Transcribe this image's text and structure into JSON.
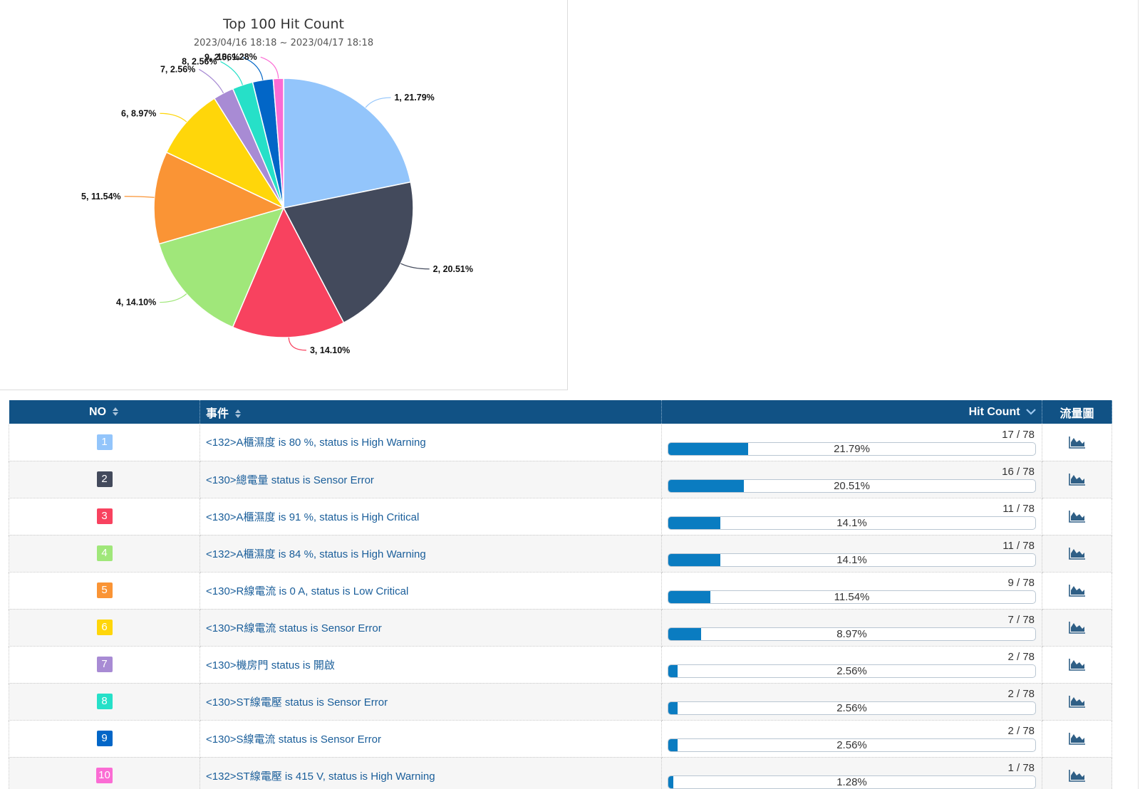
{
  "chart_data": {
    "type": "pie",
    "title": "Top 100 Hit Count",
    "subtitle": "2023/04/16 18:18 ~ 2023/04/17 18:18",
    "slices": [
      {
        "label": "1, 21.79%",
        "value": 21.79,
        "color": "#93c5fb"
      },
      {
        "label": "2, 20.51%",
        "value": 20.51,
        "color": "#434a5c"
      },
      {
        "label": "3, 14.10%",
        "value": 14.1,
        "color": "#f8425f"
      },
      {
        "label": "4, 14.10%",
        "value": 14.1,
        "color": "#a0e77a"
      },
      {
        "label": "5, 11.54%",
        "value": 11.54,
        "color": "#fa9435"
      },
      {
        "label": "6, 8.97%",
        "value": 8.97,
        "color": "#ffd60a"
      },
      {
        "label": "7, 2.56%",
        "value": 2.56,
        "color": "#a88bd4"
      },
      {
        "label": "8, 2.56%",
        "value": 2.56,
        "color": "#26e0c8"
      },
      {
        "label": "9, 2.56%",
        "value": 2.56,
        "color": "#0266c7"
      },
      {
        "label": "10, 1.28%",
        "value": 1.28,
        "color": "#fb6cd4"
      }
    ]
  },
  "table": {
    "headers": {
      "no": "NO",
      "event": "事件",
      "hit": "Hit Count",
      "flow": "流量圖"
    },
    "rows": [
      {
        "no": "1",
        "color": "#93c5fb",
        "event": "<132>A櫃濕度 is 80 %, status is High Warning",
        "count": "17 / 78",
        "pct": "21.79%",
        "value": 21.79
      },
      {
        "no": "2",
        "color": "#434a5c",
        "event": "<130>總電量 status is Sensor Error",
        "count": "16 / 78",
        "pct": "20.51%",
        "value": 20.51
      },
      {
        "no": "3",
        "color": "#f8425f",
        "event": "<130>A櫃濕度 is 91 %, status is High Critical",
        "count": "11 / 78",
        "pct": "14.1%",
        "value": 14.1
      },
      {
        "no": "4",
        "color": "#a0e77a",
        "event": "<132>A櫃濕度 is 84 %, status is High Warning",
        "count": "11 / 78",
        "pct": "14.1%",
        "value": 14.1
      },
      {
        "no": "5",
        "color": "#fa9435",
        "event": "<130>R線電流 is 0 A, status is Low Critical",
        "count": "9 / 78",
        "pct": "11.54%",
        "value": 11.54
      },
      {
        "no": "6",
        "color": "#ffd60a",
        "event": "<130>R線電流 status is Sensor Error",
        "count": "7 / 78",
        "pct": "8.97%",
        "value": 8.97
      },
      {
        "no": "7",
        "color": "#a88bd4",
        "event": "<130>機房門 status is 開啟",
        "count": "2 / 78",
        "pct": "2.56%",
        "value": 2.56
      },
      {
        "no": "8",
        "color": "#26e0c8",
        "event": "<130>ST線電壓 status is Sensor Error",
        "count": "2 / 78",
        "pct": "2.56%",
        "value": 2.56
      },
      {
        "no": "9",
        "color": "#0266c7",
        "event": "<130>S線電流 status is Sensor Error",
        "count": "2 / 78",
        "pct": "2.56%",
        "value": 2.56
      },
      {
        "no": "10",
        "color": "#fb6cd4",
        "event": "<132>ST線電壓 is 415 V, status is High Warning",
        "count": "1 / 78",
        "pct": "1.28%",
        "value": 1.28
      }
    ]
  }
}
